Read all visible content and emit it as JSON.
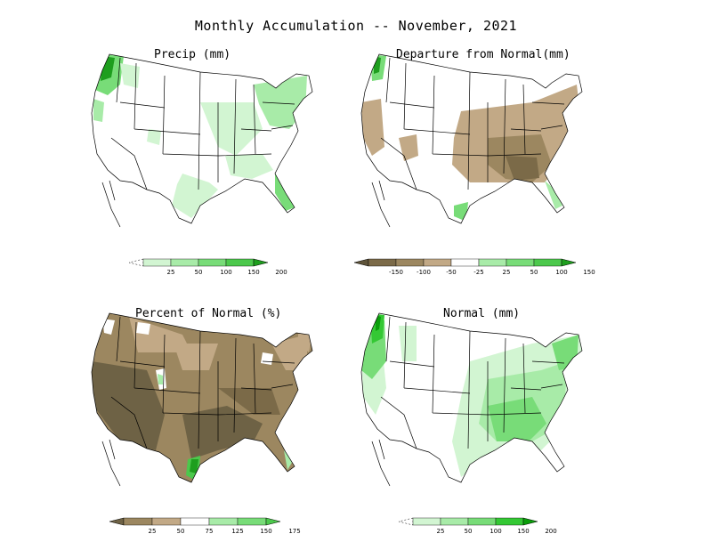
{
  "title": "Monthly Accumulation -- November, 2021",
  "panels": {
    "precip": {
      "title": "Precip (mm)",
      "legend": {
        "labels": [
          "25",
          "50",
          "100",
          "150",
          "200"
        ],
        "colors": [
          "#ffffff",
          "#d2f5d2",
          "#a8eba8",
          "#78dc78",
          "#4cc84c",
          "#1e9e1e"
        ]
      }
    },
    "departure": {
      "title": "Departure from Normal(mm)",
      "legend": {
        "labels": [
          "-150",
          "-100",
          "-50",
          "-25",
          "25",
          "50",
          "100",
          "150"
        ],
        "colors": [
          "#5e5339",
          "#7b6a48",
          "#9c8760",
          "#c2a986",
          "#ffffff",
          "#a8eba8",
          "#78dc78",
          "#4cc84c",
          "#1e9e1e"
        ]
      }
    },
    "percent": {
      "title": "Percent of Normal (%)",
      "legend": {
        "labels": [
          "25",
          "50",
          "75",
          "125",
          "150",
          "175"
        ],
        "colors": [
          "#6e6245",
          "#9c8760",
          "#c2a986",
          "#ffffff",
          "#a8eba8",
          "#78dc78",
          "#4cc84c"
        ]
      }
    },
    "normal": {
      "title": "Normal (mm)",
      "legend": {
        "labels": [
          "25",
          "50",
          "100",
          "150",
          "200"
        ],
        "colors": [
          "#ffffff",
          "#d2f5d2",
          "#a8eba8",
          "#78dc78",
          "#34c834",
          "#0a9e0a"
        ]
      }
    }
  }
}
